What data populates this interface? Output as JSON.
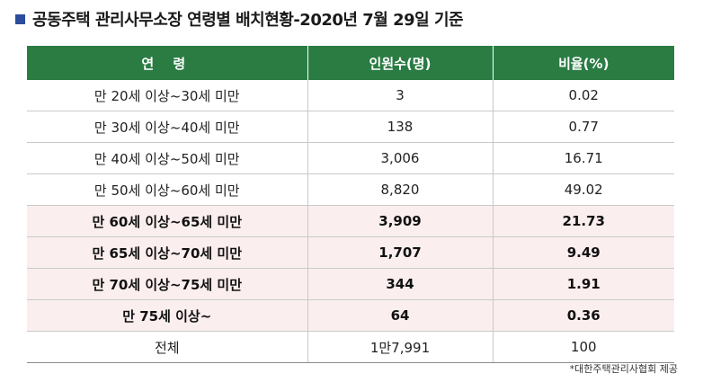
{
  "title": "공동주택 관리사무소장 연령별 배치현황-2020년 7월 29일 기준",
  "table": {
    "headers": {
      "age": "연 령",
      "count": "인원수(명)",
      "ratio": "비율(%)"
    },
    "rows": [
      {
        "age": "만 20세 이상~30세 미만",
        "count": "3",
        "ratio": "0.02",
        "highlight": false
      },
      {
        "age": "만 30세 이상~40세 미만",
        "count": "138",
        "ratio": "0.77",
        "highlight": false
      },
      {
        "age": "만 40세 이상~50세 미만",
        "count": "3,006",
        "ratio": "16.71",
        "highlight": false
      },
      {
        "age": "만 50세 이상~60세 미만",
        "count": "8,820",
        "ratio": "49.02",
        "highlight": false
      },
      {
        "age": "만 60세 이상~65세 미만",
        "count": "3,909",
        "ratio": "21.73",
        "highlight": true
      },
      {
        "age": "만 65세 이상~70세 미만",
        "count": "1,707",
        "ratio": "9.49",
        "highlight": true
      },
      {
        "age": "만 70세 이상~75세 미만",
        "count": "344",
        "ratio": "1.91",
        "highlight": true
      },
      {
        "age": "만 75세 이상~",
        "count": "64",
        "ratio": "0.36",
        "highlight": true
      }
    ],
    "total": {
      "age": "전체",
      "count": "1만7,991",
      "ratio": "100"
    }
  },
  "source": "*대한주택관리사협회 제공",
  "colors": {
    "header_bg": "#2a7c43",
    "title_square": "#2a4d9c",
    "highlight_row_bg": "#fbeeee"
  }
}
